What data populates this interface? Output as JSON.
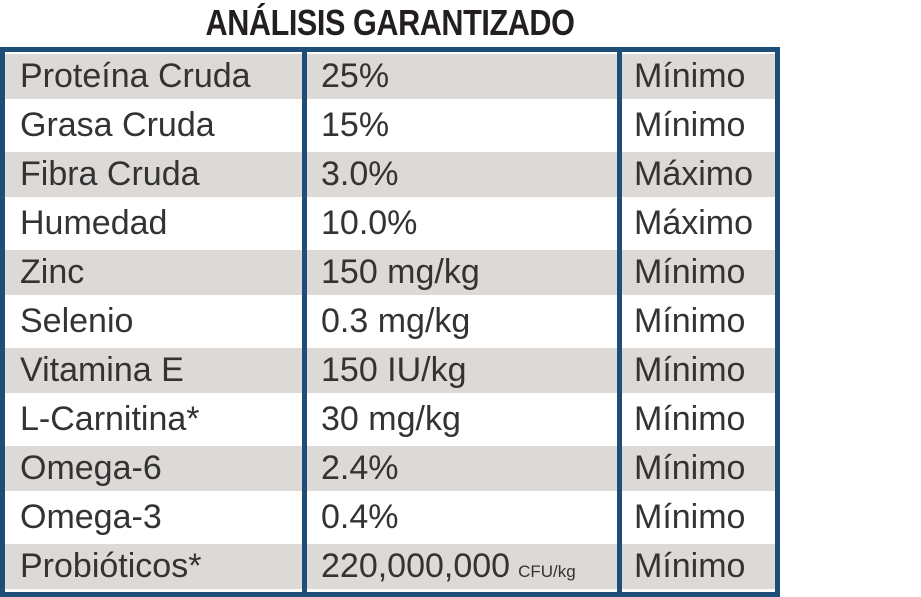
{
  "title": "ANÁLISIS GARANTIZADO",
  "rows": [
    {
      "nutrient": "Proteína Cruda",
      "value": "25%",
      "unit": "",
      "type": "Mínimo"
    },
    {
      "nutrient": "Grasa Cruda",
      "value": "15%",
      "unit": "",
      "type": "Mínimo"
    },
    {
      "nutrient": "Fibra Cruda",
      "value": "3.0%",
      "unit": "",
      "type": "Máximo"
    },
    {
      "nutrient": "Humedad",
      "value": "10.0%",
      "unit": "",
      "type": "Máximo"
    },
    {
      "nutrient": "Zinc",
      "value": "150 mg/kg",
      "unit": "",
      "type": "Mínimo"
    },
    {
      "nutrient": "Selenio",
      "value": "0.3 mg/kg",
      "unit": "",
      "type": "Mínimo"
    },
    {
      "nutrient": "Vitamina E",
      "value": "150 IU/kg",
      "unit": "",
      "type": "Mínimo"
    },
    {
      "nutrient": "L-Carnitina*",
      "value": "30 mg/kg",
      "unit": "",
      "type": "Mínimo"
    },
    {
      "nutrient": "Omega-6",
      "value": "2.4%",
      "unit": "",
      "type": "Mínimo"
    },
    {
      "nutrient": "Omega-3",
      "value": "0.4%",
      "unit": "",
      "type": "Mínimo"
    },
    {
      "nutrient": "Probióticos*",
      "value": "220,000,000",
      "unit": "CFU/kg",
      "type": "Mínimo"
    }
  ],
  "colors": {
    "border": "#1e4d78",
    "stripe": "#dcd9d6",
    "text": "#333333"
  }
}
